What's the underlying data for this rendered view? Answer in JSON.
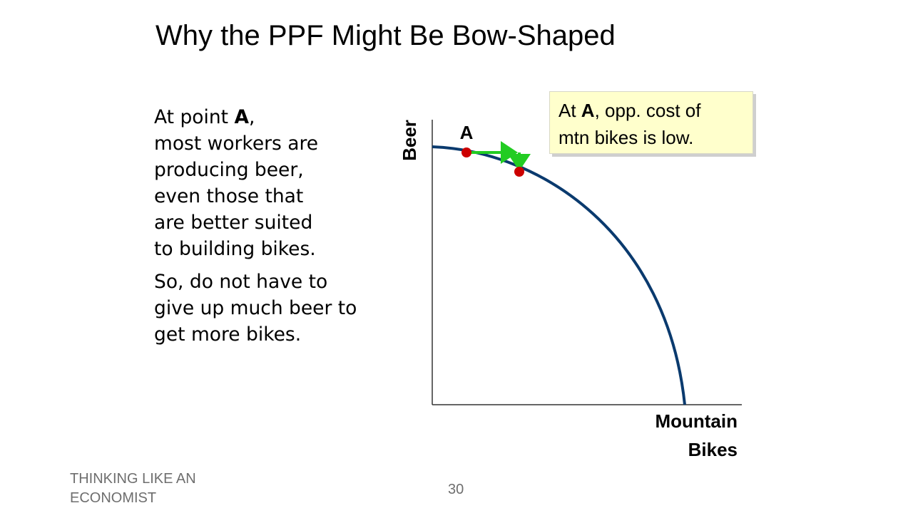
{
  "slide": {
    "title": "Why the PPF Might Be Bow-Shaped",
    "footer_text": "THINKING LIKE AN ECONOMIST",
    "slide_number": "30"
  },
  "explanation": {
    "para1_lines": [
      "At point ",
      "A",
      ",",
      "most workers are",
      "producing beer,",
      "even those that",
      "are better suited",
      "to building bikes."
    ],
    "para2_lines": [
      "So, do not have to",
      "give up much beer to",
      "get more bikes."
    ]
  },
  "callout": {
    "line1_prefix": "At ",
    "line1_bold": "A",
    "line1_suffix": ", opp. cost of",
    "line2": "mtn bikes is low."
  },
  "diagram": {
    "y_axis_label": "Beer",
    "x_axis_label_line1": "Mountain",
    "x_axis_label_line2": "Bikes",
    "point_label": "A",
    "colors": {
      "curve": "#0a3a6e",
      "point": "#cc0000",
      "arrow": "#22cc22",
      "axis": "#333333"
    }
  }
}
